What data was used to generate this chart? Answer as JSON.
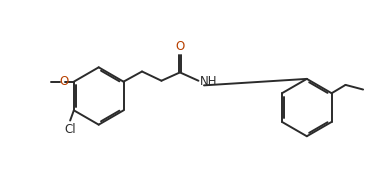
{
  "bg_color": "#ffffff",
  "line_color": "#2b2b2b",
  "label_color_O": "#b84000",
  "label_color_Cl": "#2b2b2b",
  "label_color_NH": "#2b2b2b",
  "line_width": 1.4,
  "font_size": 8.5,
  "figsize": [
    3.87,
    1.92
  ],
  "dpi": 100,
  "xlim": [
    0.0,
    8.2
  ],
  "ylim": [
    0.5,
    4.2
  ]
}
